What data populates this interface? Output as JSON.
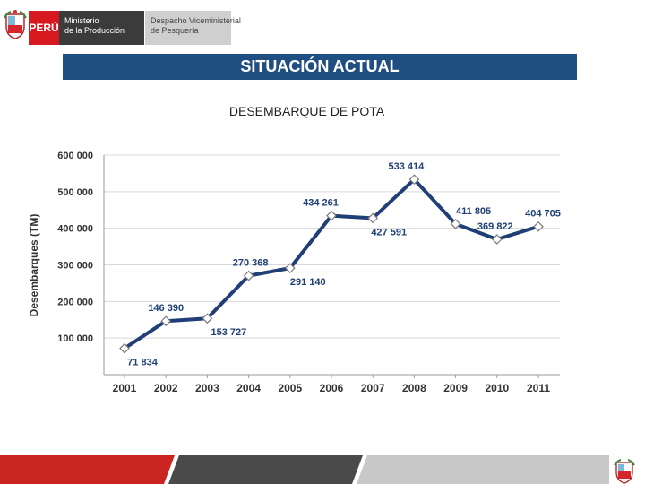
{
  "header": {
    "country": "PERÚ",
    "ministry": [
      "Ministerio",
      "de la Producción"
    ],
    "vice_ministry": [
      "Despacho Viceministerial",
      "de Pesquería"
    ]
  },
  "slide": {
    "title": "SITUACIÓN ACTUAL",
    "subtitle": "DESEMBARQUE DE POTA"
  },
  "colors": {
    "title_bar": "#1f4e82",
    "line": "#1f3f76",
    "footer_red": "#c9241f",
    "footer_dark": "#4a4a4a"
  },
  "chart_data": {
    "type": "line",
    "title": "DESEMBARQUE DE POTA",
    "xlabel": "",
    "ylabel": "Desembarques (TM)",
    "ylim": [
      0,
      600000
    ],
    "y_ticks": [
      100000,
      200000,
      300000,
      400000,
      500000,
      600000
    ],
    "y_tick_labels": [
      "100 000",
      "200 000",
      "300 000",
      "400 000",
      "500 000",
      "600 000"
    ],
    "categories": [
      "2001",
      "2002",
      "2003",
      "2004",
      "2005",
      "2006",
      "2007",
      "2008",
      "2009",
      "2010",
      "2011"
    ],
    "values": [
      71834,
      146390,
      153727,
      270368,
      291140,
      434261,
      427591,
      533414,
      411805,
      369822,
      404705
    ],
    "data_labels": [
      "71 834",
      "146 390",
      "153 727",
      "270 368",
      "291 140",
      "434 261",
      "427 591",
      "533 414",
      "411 805",
      "369 822",
      "404 705"
    ],
    "grid": true
  }
}
